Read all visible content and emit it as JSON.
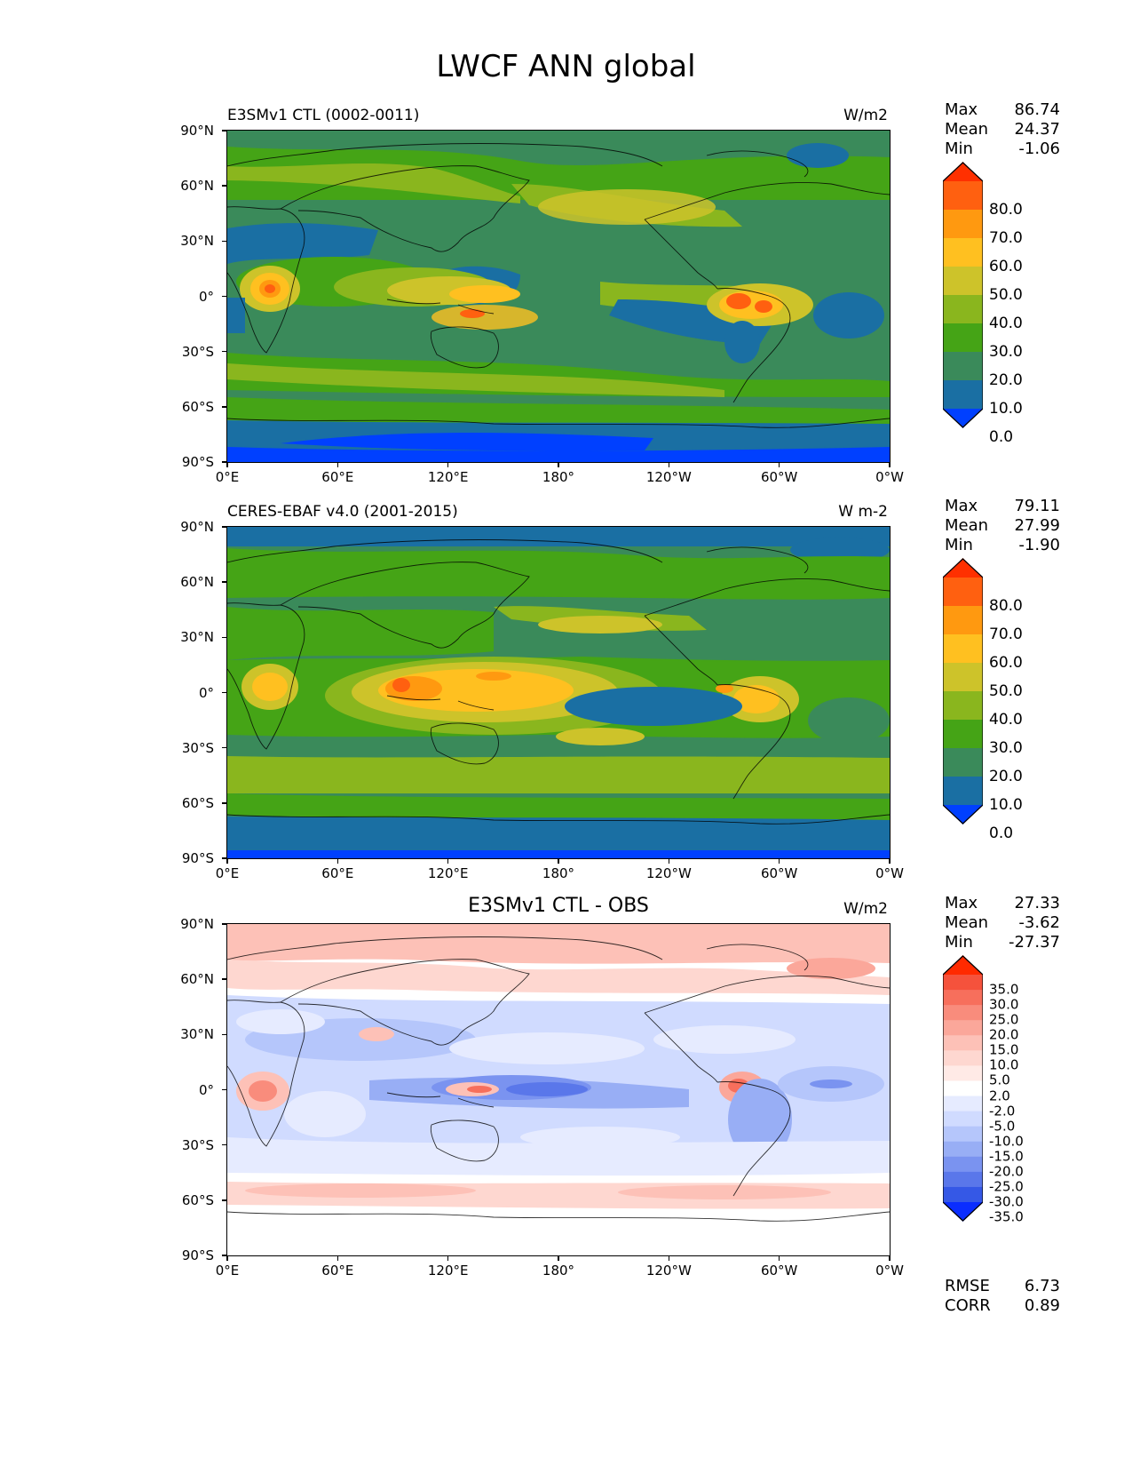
{
  "title": "LWCF ANN global",
  "axes": {
    "lat_labels": [
      "90°N",
      "60°N",
      "30°N",
      "0°",
      "30°S",
      "60°S",
      "90°S"
    ],
    "lon_labels": [
      "0°E",
      "60°E",
      "120°E",
      "180°",
      "120°W",
      "60°W",
      "0°W"
    ]
  },
  "panels": [
    {
      "title": "E3SMv1 CTL (0002-0011)",
      "units": "W/m2",
      "stats": [
        {
          "label": "Max",
          "value": "86.74"
        },
        {
          "label": "Mean",
          "value": "24.37"
        },
        {
          "label": "Min",
          "value": "-1.06"
        }
      ],
      "colorbar": {
        "labels": [
          "80.0",
          "70.0",
          "60.0",
          "50.0",
          "40.0",
          "30.0",
          "20.0",
          "10.0",
          "0.0"
        ],
        "colors": [
          "#ff3000",
          "#ff6010",
          "#ff9910",
          "#ffc020",
          "#cdc32a",
          "#8ab61e",
          "#45a416",
          "#3a8a5a",
          "#1a6fa3",
          "#0040ff"
        ]
      }
    },
    {
      "title": "CERES-EBAF v4.0 (2001-2015)",
      "units": "W m-2",
      "stats": [
        {
          "label": "Max",
          "value": "79.11"
        },
        {
          "label": "Mean",
          "value": "27.99"
        },
        {
          "label": "Min",
          "value": "-1.90"
        }
      ],
      "colorbar": {
        "labels": [
          "80.0",
          "70.0",
          "60.0",
          "50.0",
          "40.0",
          "30.0",
          "20.0",
          "10.0",
          "0.0"
        ],
        "colors": [
          "#ff3000",
          "#ff6010",
          "#ff9910",
          "#ffc020",
          "#cdc32a",
          "#8ab61e",
          "#45a416",
          "#3a8a5a",
          "#1a6fa3",
          "#0040ff"
        ]
      }
    },
    {
      "title": "E3SMv1 CTL - OBS",
      "units": "W/m2",
      "stats": [
        {
          "label": "Max",
          "value": "27.33"
        },
        {
          "label": "Mean",
          "value": "-3.62"
        },
        {
          "label": "Min",
          "value": "-27.37"
        }
      ],
      "colorbar": {
        "labels": [
          "35.0",
          "30.0",
          "25.0",
          "20.0",
          "15.0",
          "10.0",
          "5.0",
          "2.0",
          "-2.0",
          "-5.0",
          "-10.0",
          "-15.0",
          "-20.0",
          "-25.0",
          "-30.0",
          "-35.0"
        ],
        "colors": [
          "#ff2a00",
          "#f5523c",
          "#f76f5c",
          "#f98c7c",
          "#fba79a",
          "#fdc1b7",
          "#fed7d0",
          "#ffeae6",
          "#ffffff",
          "#e6ebff",
          "#d0dbff",
          "#b5c6fb",
          "#98aef5",
          "#7a93f0",
          "#5a77ea",
          "#3558e6",
          "#0a2dff"
        ]
      }
    }
  ],
  "diff_stats": [
    {
      "label": "RMSE",
      "value": "6.73"
    },
    {
      "label": "CORR",
      "value": "0.89"
    }
  ]
}
